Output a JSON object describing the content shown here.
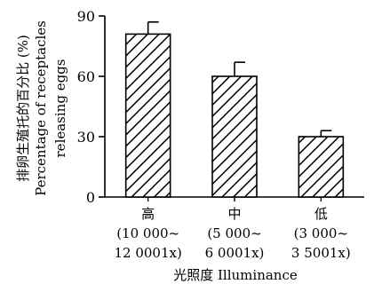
{
  "chart_data": {
    "type": "bar",
    "categories": [
      {
        "lines": [
          "高",
          "(10 000~",
          "12 0001x)"
        ]
      },
      {
        "lines": [
          "中",
          "(5 000~",
          "6 0001x)"
        ]
      },
      {
        "lines": [
          "低",
          "(3 000~",
          "3 5001x)"
        ]
      }
    ],
    "values": [
      81,
      60,
      30
    ],
    "errors": [
      6,
      7,
      3
    ],
    "ylim": [
      0,
      90
    ],
    "yticks": [
      0,
      30,
      60,
      90
    ],
    "ytick_labels": [
      "0",
      "30",
      "60",
      "90"
    ],
    "ylabel_lines": [
      "排卵生殖托的百分比 (%)",
      "Percentage of receptacles",
      "releasing eggs"
    ],
    "xlabel": "光照度 Illuminance",
    "bar_pattern": "diagonal-hatch",
    "grid": false,
    "legend": "none"
  }
}
